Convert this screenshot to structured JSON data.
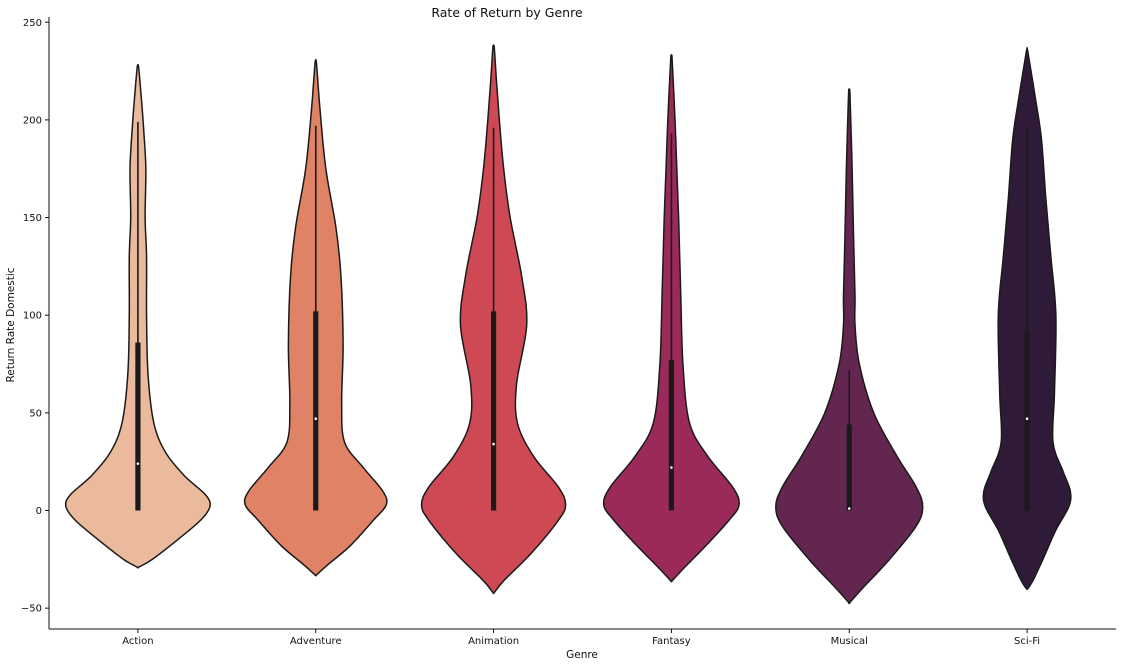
{
  "chart_data": {
    "type": "violin",
    "title": "Rate of Return by Genre",
    "xlabel": "Genre",
    "ylabel": "Return Rate Domestic",
    "ylim": [
      -60,
      250
    ],
    "yticks": [
      -50,
      0,
      50,
      100,
      150,
      200,
      250
    ],
    "grid": false,
    "categories": [
      "Action",
      "Adventure",
      "Animation",
      "Fantasy",
      "Musical",
      "Sci-Fi"
    ],
    "colors": [
      "#ebb99b",
      "#e08265",
      "#cf4955",
      "#9b2a5a",
      "#63264f",
      "#2f1b37"
    ],
    "series": [
      {
        "category": "Action",
        "min": 0,
        "q1": 0,
        "median": 24,
        "q3": 86,
        "whisker_hi": 199,
        "kde_range": [
          -29,
          227
        ]
      },
      {
        "category": "Adventure",
        "min": 0,
        "q1": 0,
        "median": 47,
        "q3": 102,
        "whisker_hi": 197,
        "kde_range": [
          -33,
          229
        ]
      },
      {
        "category": "Animation",
        "min": 0,
        "q1": 0,
        "median": 34,
        "q3": 102,
        "whisker_hi": 196,
        "kde_range": [
          -42,
          237
        ]
      },
      {
        "category": "Fantasy",
        "min": 0,
        "q1": 0,
        "median": 22,
        "q3": 77,
        "whisker_hi": 193,
        "kde_range": [
          -36,
          231
        ]
      },
      {
        "category": "Musical",
        "min": 0,
        "q1": 0,
        "median": 1,
        "q3": 44,
        "whisker_hi": 72,
        "kde_range": [
          -47,
          213
        ]
      },
      {
        "category": "Sci-Fi",
        "min": 0,
        "q1": 0,
        "median": 47,
        "q3": 92,
        "whisker_hi": 197,
        "kde_range": [
          -40,
          235
        ]
      }
    ]
  }
}
